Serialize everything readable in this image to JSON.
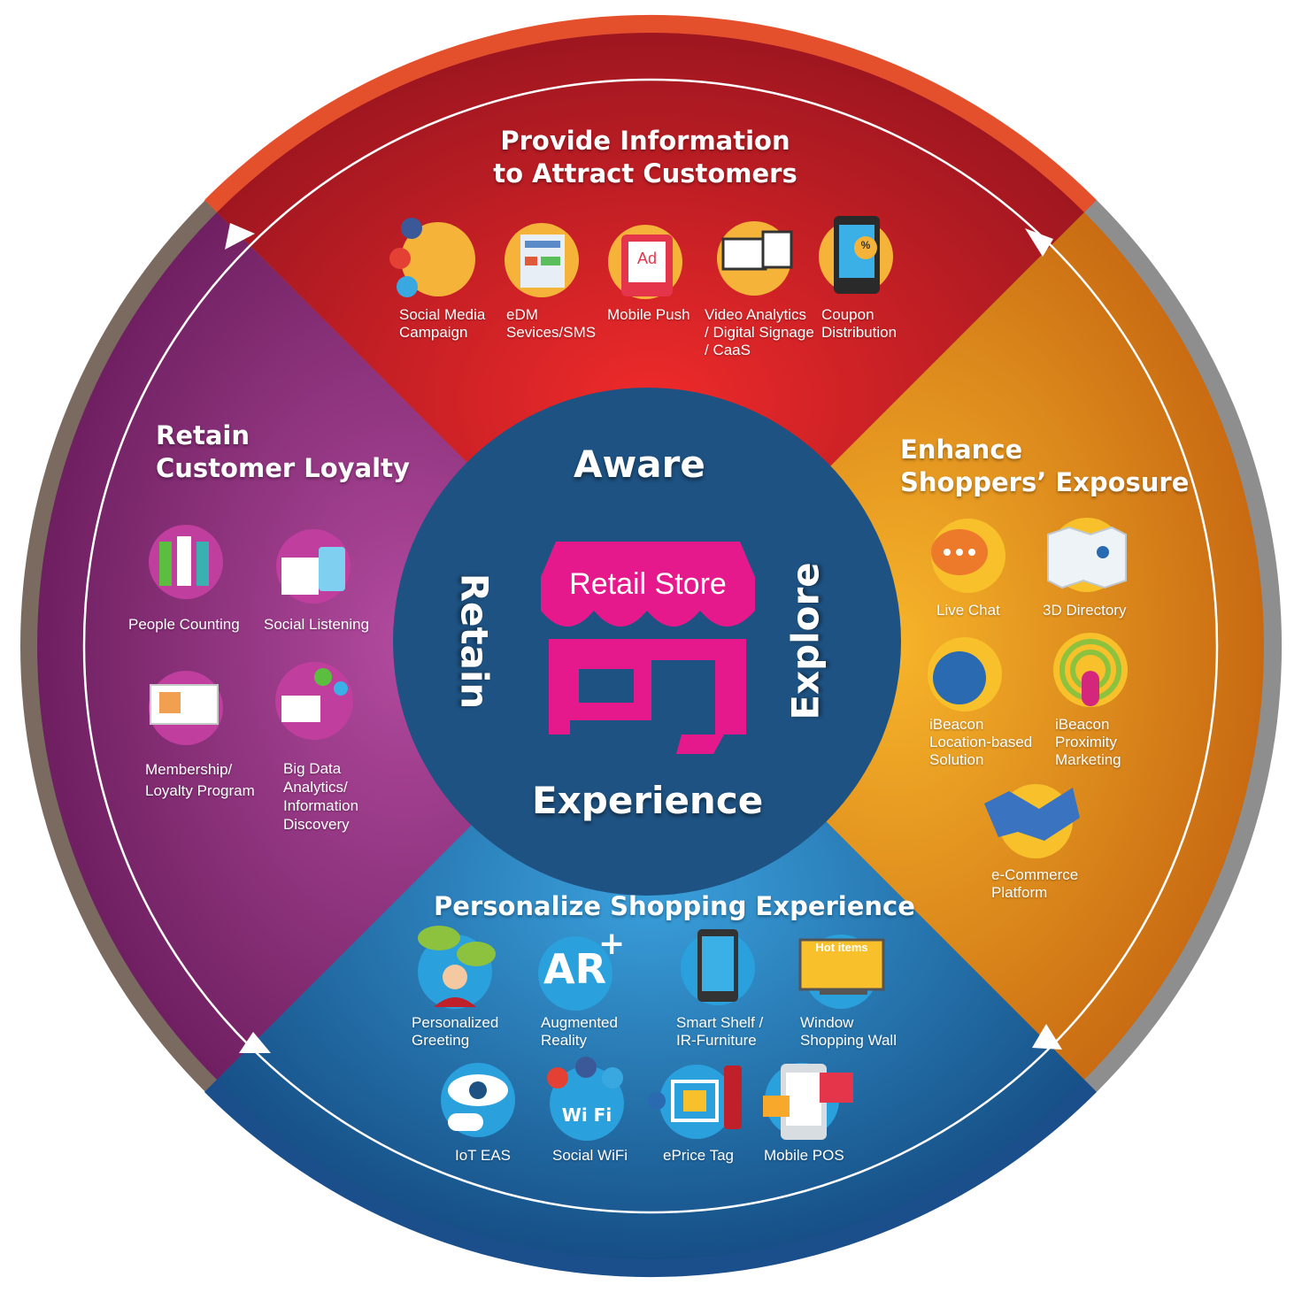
{
  "center": {
    "store_label": "Retail Store",
    "stages": {
      "top": "Aware",
      "right": "Explore",
      "bottom": "Experience",
      "left": "Retain"
    }
  },
  "sections": {
    "top": {
      "title": "Provide Information\nto Attract Customers",
      "color": "#d9232d",
      "items": [
        {
          "label": "Social Media\nCampaign",
          "icon": "lightbulb-social-icon"
        },
        {
          "label": "eDM\nSevices/SMS",
          "icon": "newsletter-icon"
        },
        {
          "label": "Mobile Push",
          "icon": "mobile-ad-icon"
        },
        {
          "label": "Video Analytics\n/ Digital Signage\n/ CaaS",
          "icon": "video-screens-icon"
        },
        {
          "label": "Coupon\nDistribution",
          "icon": "phone-coupon-icon"
        }
      ]
    },
    "right": {
      "title": "Enhance\nShoppers’ Exposure",
      "color": "#e89a1c",
      "items": [
        {
          "label": "Live Chat",
          "icon": "chat-bubble-icon"
        },
        {
          "label": "3D Directory",
          "icon": "map-icon"
        },
        {
          "label": "iBeacon\nLocation-based\nSolution",
          "icon": "globe-touch-icon"
        },
        {
          "label": "iBeacon\nProximity\nMarketing",
          "icon": "beacon-signal-icon"
        },
        {
          "label": "e-Commerce\nPlatform",
          "icon": "handshake-icon"
        }
      ]
    },
    "bottom": {
      "title": "Personalize Shopping Experience",
      "color": "#1f7fc0",
      "items": [
        {
          "label": "Personalized\nGreeting",
          "icon": "greeting-person-icon"
        },
        {
          "label": "Augmented\nReality",
          "icon": "ar-icon"
        },
        {
          "label": "Smart Shelf /\nIR-Furniture",
          "icon": "tablet-shelf-icon"
        },
        {
          "label": "Window\nShopping Wall",
          "icon": "hot-items-screen-icon"
        },
        {
          "label": "IoT EAS",
          "icon": "eye-sensor-icon"
        },
        {
          "label": "Social WiFi",
          "icon": "free-wifi-icon"
        },
        {
          "label": "ePrice Tag",
          "icon": "price-tag-scan-icon"
        },
        {
          "label": "Mobile POS",
          "icon": "mobile-pos-icon"
        }
      ],
      "hot_items_text": "Hot items",
      "wifi_text": "Wi Fi"
    },
    "left": {
      "title": "Retain\nCustomer Loyalty",
      "color": "#9c3c8c",
      "items": [
        {
          "label": "People Counting",
          "icon": "people-icon"
        },
        {
          "label": "Social Listening",
          "icon": "social-listening-icon"
        },
        {
          "label": "Membership/\nLoyalty Program",
          "icon": "member-card-icon"
        },
        {
          "label": "Big Data\nAnalytics/\nInformation\nDiscovery",
          "icon": "big-data-icon"
        }
      ]
    }
  },
  "colors": {
    "center": "#1e5282",
    "store": "#e5198c",
    "rim_top": "#e5502c",
    "rim_right": "#8c8c8c",
    "rim_bottom": "#1a4f8c",
    "rim_left": "#7a6a5c"
  }
}
